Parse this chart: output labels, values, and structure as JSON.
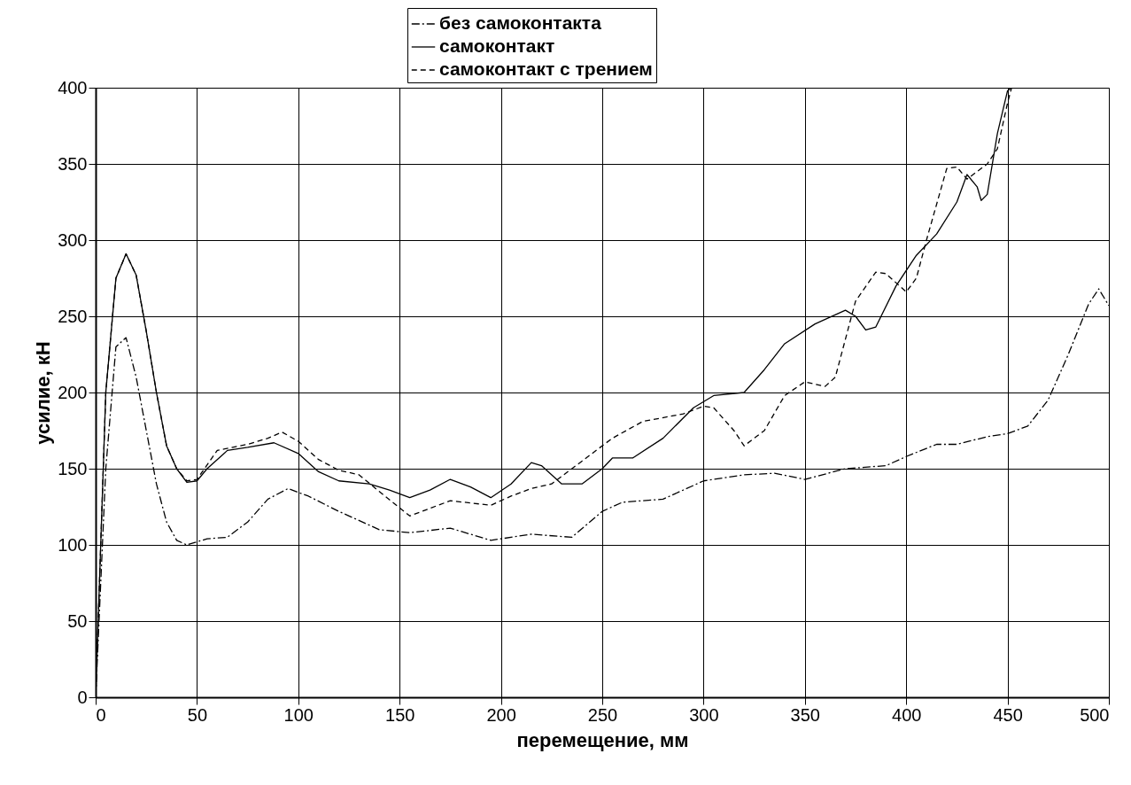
{
  "chart_data": {
    "type": "line",
    "xlabel": "перемещение, мм",
    "ylabel": "усилие, кН",
    "xlim": [
      0,
      500
    ],
    "xticks": [
      0,
      50,
      100,
      150,
      200,
      250,
      300,
      350,
      400,
      450,
      500
    ],
    "ylim": [
      0,
      400
    ],
    "yticks": [
      0,
      50,
      100,
      150,
      200,
      250,
      300,
      350,
      400
    ],
    "grid": true,
    "legend": "top",
    "marker": "none",
    "series": [
      {
        "name": "без самоконтакта",
        "color": "#000000",
        "line_style": "dashdot",
        "x": [
          0,
          5,
          10,
          15,
          20,
          25,
          30,
          35,
          40,
          45,
          55,
          65,
          75,
          85,
          95,
          105,
          120,
          140,
          155,
          175,
          195,
          215,
          235,
          250,
          260,
          280,
          300,
          320,
          335,
          350,
          370,
          390,
          400,
          415,
          425,
          440,
          450,
          460,
          470,
          480,
          490,
          495,
          500
        ],
        "values": [
          0,
          150,
          230,
          236,
          210,
          175,
          140,
          115,
          103,
          100,
          104,
          105,
          115,
          130,
          137,
          132,
          122,
          110,
          108,
          111,
          103,
          107,
          105,
          122,
          128,
          130,
          142,
          146,
          147,
          143,
          150,
          152,
          158,
          166,
          166,
          171,
          173,
          178,
          195,
          225,
          258,
          268,
          257
        ]
      },
      {
        "name": "самоконтакт",
        "color": "#000000",
        "line_style": "solid",
        "x": [
          0,
          5,
          10,
          15,
          20,
          25,
          30,
          35,
          40,
          45,
          50,
          55,
          65,
          75,
          88,
          100,
          110,
          120,
          135,
          145,
          155,
          165,
          175,
          185,
          195,
          205,
          215,
          220,
          230,
          240,
          250,
          255,
          265,
          280,
          295,
          305,
          320,
          330,
          340,
          355,
          370,
          375,
          380,
          385,
          395,
          405,
          415,
          425,
          430,
          435,
          437,
          440,
          445,
          450,
          452
        ],
        "values": [
          0,
          200,
          275,
          291,
          277,
          240,
          200,
          165,
          150,
          141,
          142,
          150,
          162,
          164,
          167,
          160,
          148,
          142,
          140,
          136,
          131,
          136,
          143,
          138,
          131,
          140,
          154,
          152,
          140,
          140,
          150,
          157,
          157,
          170,
          190,
          198,
          200,
          215,
          232,
          245,
          254,
          250,
          241,
          243,
          270,
          290,
          304,
          325,
          343,
          335,
          326,
          330,
          370,
          398,
          400
        ]
      },
      {
        "name": "самоконтакт с трением",
        "color": "#000000",
        "line_style": "dashed",
        "x": [
          0,
          5,
          10,
          15,
          20,
          25,
          30,
          35,
          40,
          45,
          50,
          60,
          75,
          85,
          92,
          100,
          110,
          120,
          130,
          140,
          155,
          165,
          175,
          195,
          205,
          215,
          225,
          240,
          255,
          270,
          290,
          300,
          305,
          315,
          320,
          330,
          340,
          350,
          360,
          365,
          375,
          385,
          390,
          400,
          405,
          410,
          420,
          425,
          430,
          440,
          445,
          450,
          452
        ],
        "values": [
          0,
          200,
          275,
          291,
          277,
          240,
          200,
          165,
          150,
          142,
          143,
          162,
          166,
          170,
          174,
          168,
          156,
          149,
          146,
          135,
          119,
          124,
          129,
          126,
          132,
          137,
          140,
          155,
          170,
          181,
          186,
          191,
          190,
          175,
          165,
          175,
          198,
          207,
          204,
          210,
          260,
          279,
          278,
          266,
          275,
          300,
          347,
          348,
          340,
          350,
          360,
          390,
          400
        ]
      }
    ]
  }
}
